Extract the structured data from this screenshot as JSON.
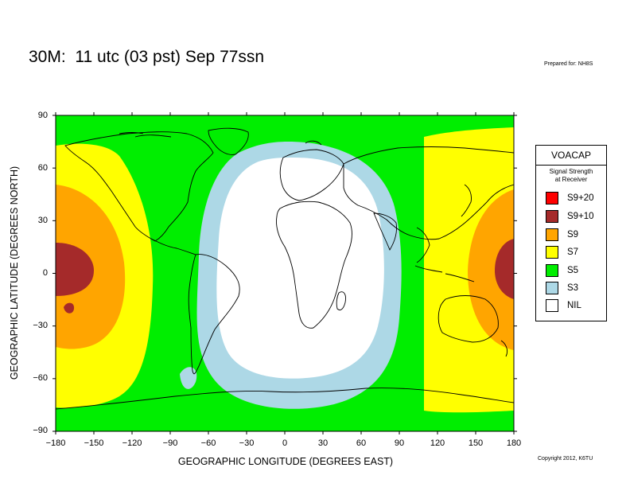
{
  "title": "30M:  11 utc (03 pst) Sep 77ssn",
  "prepared_by": "Prepared for: NH8S",
  "copyright": "Copyright 2012, K6TU",
  "axes": {
    "ylabel": "GEOGRAPHIC LATITUDE (DEGREES NORTH)",
    "xlabel": "GEOGRAPHIC LONGITUDE (DEGREES EAST)",
    "yticks": [
      "90",
      "60",
      "30",
      "0",
      "−30",
      "−60",
      "−90"
    ],
    "xticks": [
      "−180",
      "−150",
      "−120",
      "−90",
      "−60",
      "−30",
      "0",
      "30",
      "60",
      "90",
      "120",
      "150",
      "180"
    ]
  },
  "legend": {
    "title": "VOACAP",
    "subtitle_line1": "Signal Strength",
    "subtitle_line2": "at Receiver",
    "items": [
      {
        "label": "S9+20",
        "color": "#ff0000"
      },
      {
        "label": "S9+10",
        "color": "#a52a2a"
      },
      {
        "label": "S9",
        "color": "#ffa500"
      },
      {
        "label": "S7",
        "color": "#ffff00"
      },
      {
        "label": "S5",
        "color": "#00ee00"
      },
      {
        "label": "S3",
        "color": "#add8e6"
      },
      {
        "label": "NIL",
        "color": "#ffffff"
      }
    ]
  },
  "colors": {
    "S9+10": "#a52a2a",
    "S9": "#ffa500",
    "S7": "#ffff00",
    "S5": "#00ee00",
    "S3": "#add8e6",
    "NIL": "#ffffff",
    "coastline": "#000000"
  },
  "map_extent": {
    "lon": [
      -180,
      180
    ],
    "lat": [
      -90,
      90
    ]
  }
}
